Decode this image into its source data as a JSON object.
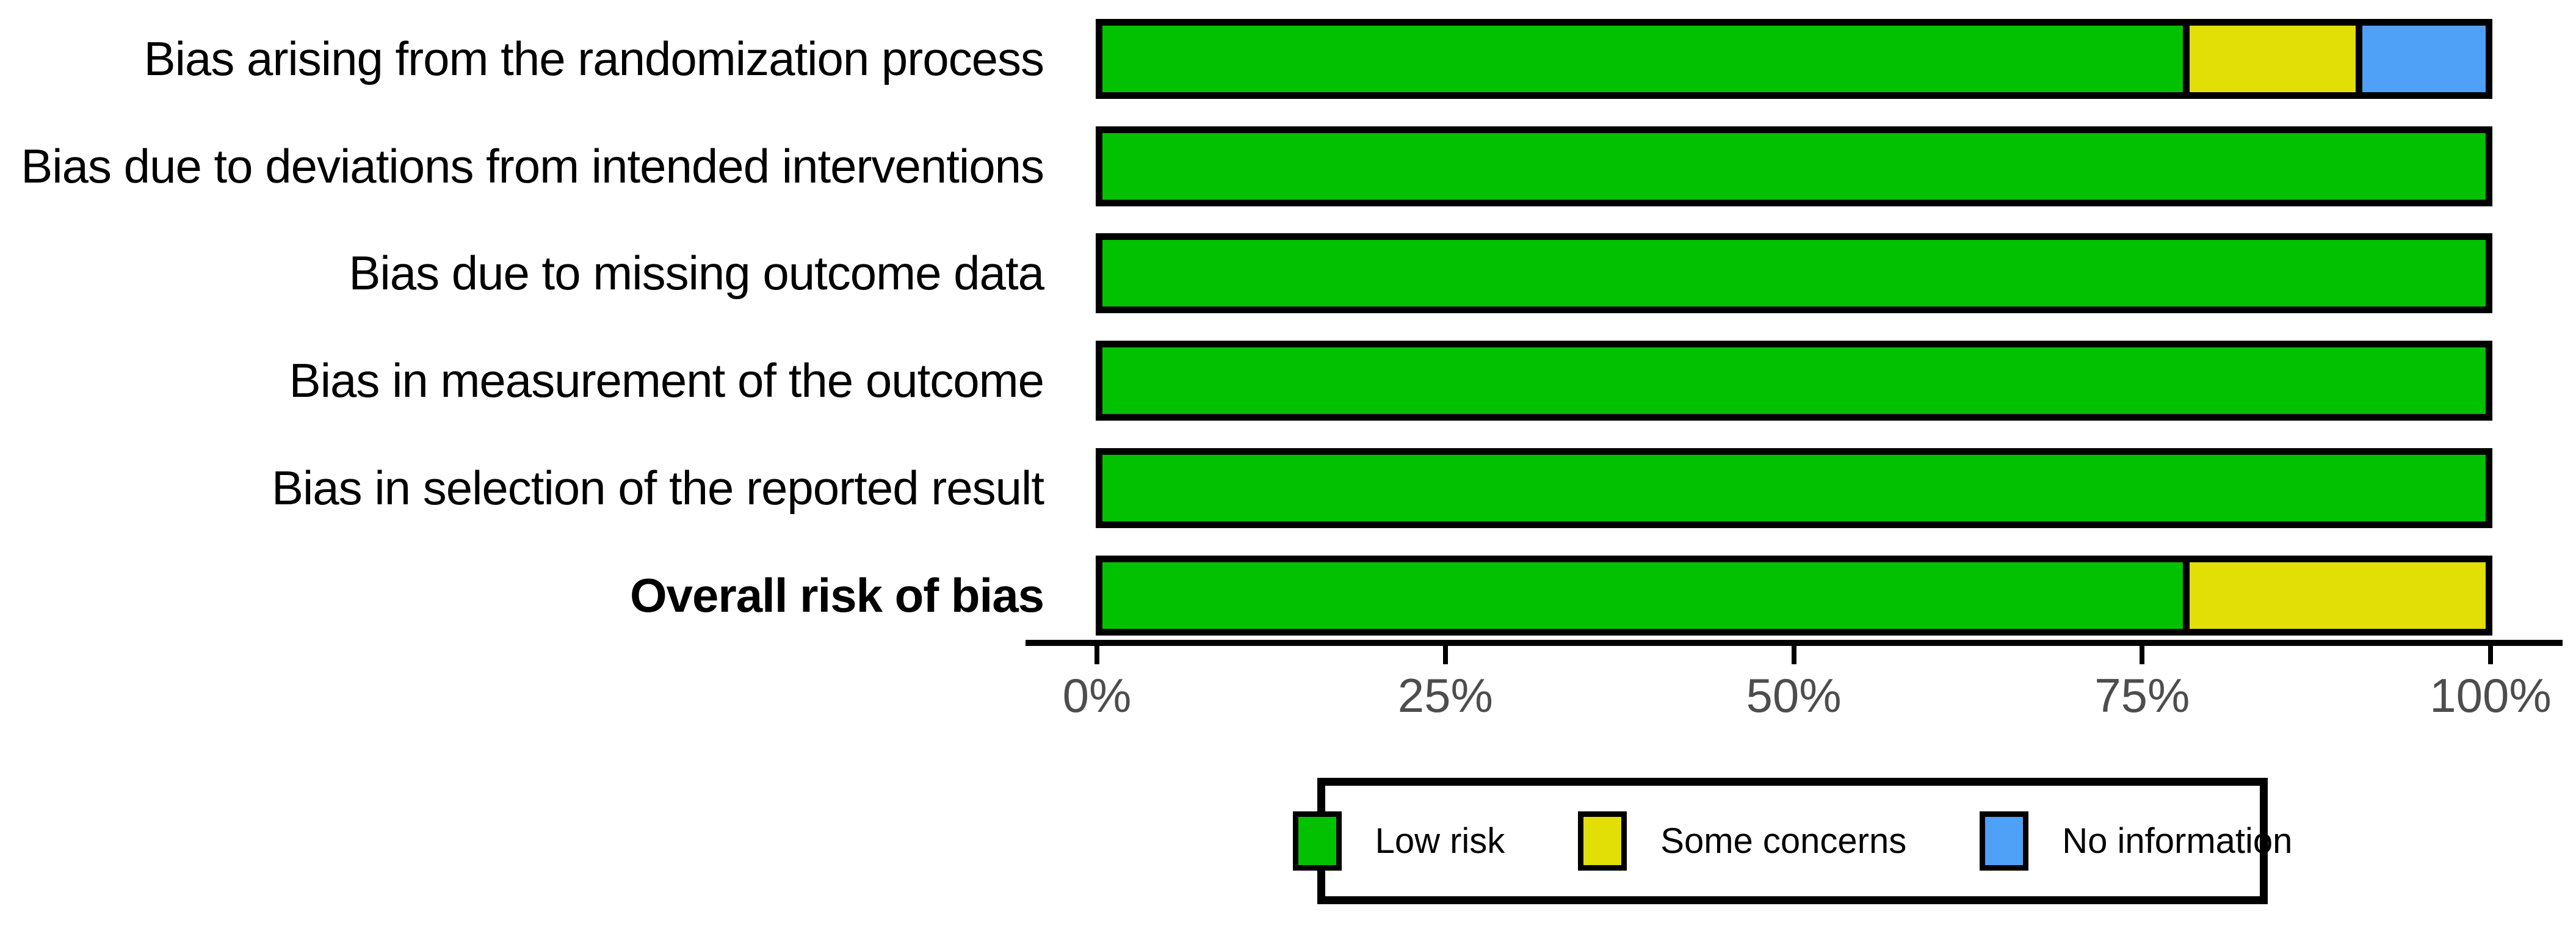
{
  "chart_data": {
    "type": "bar",
    "orientation": "horizontal-stacked",
    "title": "",
    "xlabel": "",
    "ylabel": "",
    "axis_range_percent": [
      0,
      100
    ],
    "grid": false,
    "categories": [
      {
        "label": "Bias arising from the randomization process",
        "bold": false
      },
      {
        "label": "Bias due to deviations from intended interventions",
        "bold": false
      },
      {
        "label": "Bias due to missing outcome data",
        "bold": false
      },
      {
        "label": "Bias in measurement of the outcome",
        "bold": false
      },
      {
        "label": "Bias in selection of the reported result",
        "bold": false
      },
      {
        "label": "Overall risk of bias",
        "bold": true
      }
    ],
    "series": [
      {
        "name": "Low risk",
        "color": "#02C100",
        "values": [
          78.1,
          100,
          100,
          100,
          100,
          78.1
        ]
      },
      {
        "name": "Some concerns",
        "color": "#E2DF07",
        "values": [
          12.5,
          0,
          0,
          0,
          0,
          21.9
        ]
      },
      {
        "name": "No information",
        "color": "#4EA1F7",
        "values": [
          9.4,
          0,
          0,
          0,
          0,
          0
        ]
      }
    ],
    "x_ticks": [
      {
        "value": 0,
        "label": "0%"
      },
      {
        "value": 25,
        "label": "25%"
      },
      {
        "value": 50,
        "label": "50%"
      },
      {
        "value": 75,
        "label": "75%"
      },
      {
        "value": 100,
        "label": "100%"
      }
    ],
    "legend_position": "bottom"
  },
  "legend": {
    "items": [
      {
        "label": "Low risk",
        "color": "#02C100"
      },
      {
        "label": "Some concerns",
        "color": "#E2DF07"
      },
      {
        "label": "No information",
        "color": "#4EA1F7"
      }
    ]
  }
}
